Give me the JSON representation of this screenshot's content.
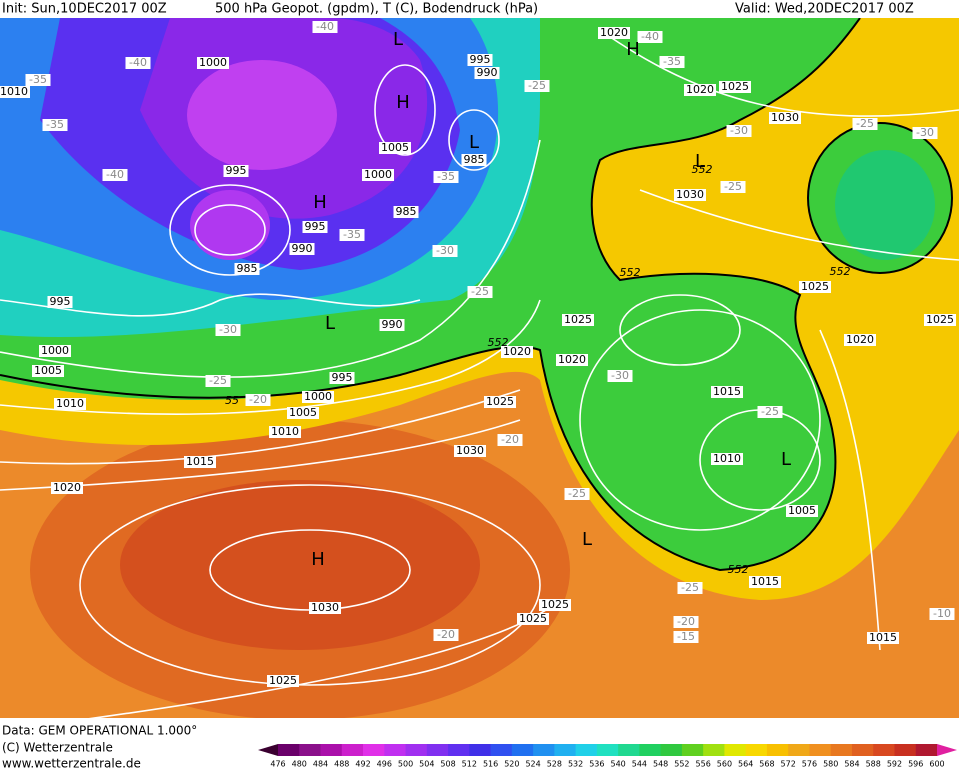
{
  "header": {
    "init": "Init: Sun,10DEC2017 00Z",
    "title": "500 hPa Geopot. (gpdm), T (C), Bodendruck (hPa)",
    "valid": "Valid: Wed,20DEC2017 00Z"
  },
  "map": {
    "pressure_labels": [
      1000,
      995,
      1005,
      1000,
      985,
      985,
      995,
      990,
      985,
      995,
      990,
      995,
      1000,
      1005,
      1010,
      1015,
      1020,
      1030,
      1030,
      1025,
      1025,
      1025,
      1015,
      1015,
      1005,
      1010,
      1015,
      1020,
      1025,
      1020,
      1025,
      1000,
      995,
      1005,
      1010,
      990,
      1020,
      1025,
      1030,
      1030,
      1020,
      1025,
      1020,
      1025,
      1010
    ],
    "temperature_labels": [
      -40,
      -40,
      -35,
      -35,
      -40,
      -35,
      -35,
      -30,
      -25,
      -30,
      -25,
      -20,
      -20,
      -25,
      -30,
      -25,
      -25,
      -20,
      -15,
      -20,
      -10,
      -25,
      -35,
      -40,
      -30,
      -25,
      -25,
      -30
    ],
    "centers": [
      "L",
      "H",
      "L",
      "H",
      "L",
      "H",
      "L",
      "L",
      "L",
      "H"
    ],
    "contour_labels": [
      552,
      552,
      552,
      552,
      552,
      55
    ]
  },
  "footer": {
    "source": "Data: GEM OPERATIONAL 1.000°",
    "copyright": "(C) Wetterzentrale",
    "url": "www.wetterzentrale.de"
  },
  "legend": {
    "labels": [
      476,
      480,
      484,
      488,
      492,
      496,
      500,
      504,
      508,
      512,
      516,
      520,
      524,
      528,
      532,
      536,
      540,
      544,
      548,
      552,
      556,
      560,
      564,
      568,
      572,
      576,
      580,
      584,
      588,
      592,
      596,
      600
    ],
    "colors": [
      "#3a0030",
      "#6a006a",
      "#8a108a",
      "#aa10aa",
      "#cc20cc",
      "#e030e8",
      "#c030f0",
      "#a030f0",
      "#8030f0",
      "#6030f0",
      "#4030e8",
      "#3050f0",
      "#2070f0",
      "#2090f0",
      "#20b0f0",
      "#20d0e8",
      "#20e0c0",
      "#20d890",
      "#20d060",
      "#30c840",
      "#60d020",
      "#a0e010",
      "#e0e800",
      "#f8d800",
      "#f8c000",
      "#f0a818",
      "#f09020",
      "#e87820",
      "#e06020",
      "#d84820",
      "#c83020",
      "#b01830",
      "#e020a0"
    ]
  }
}
